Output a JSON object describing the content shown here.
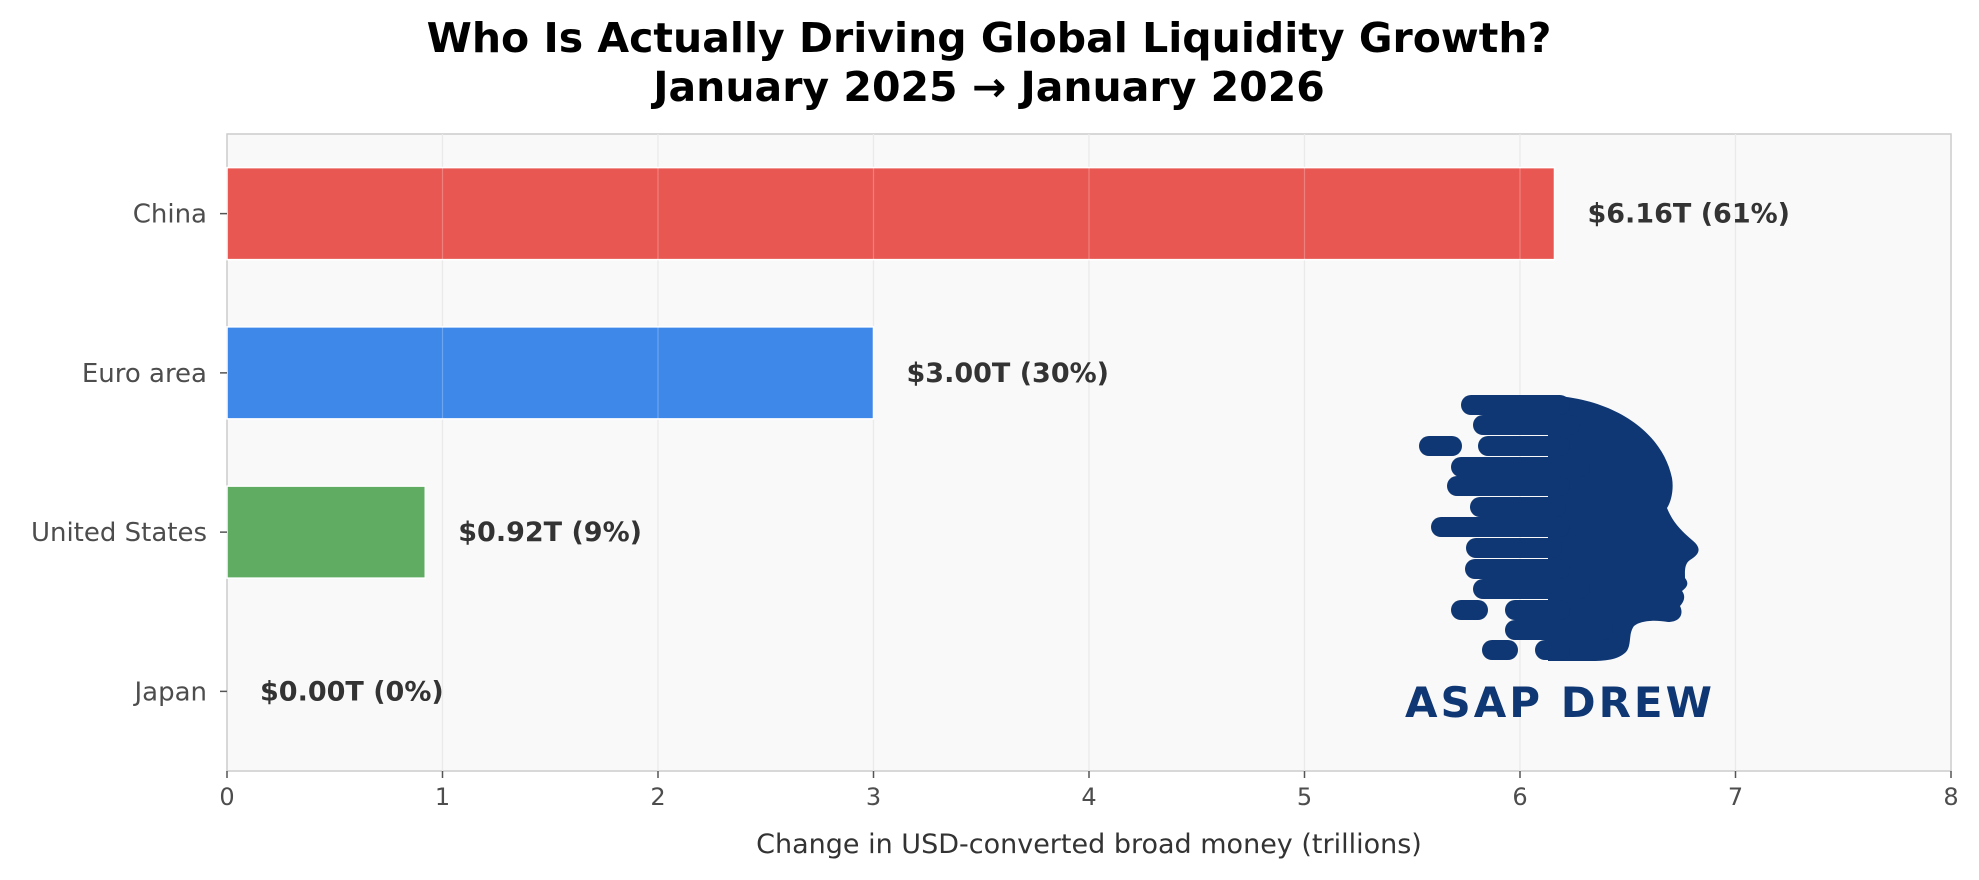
{
  "chart_data": {
    "type": "bar",
    "orientation": "horizontal",
    "title_line1": "Who Is Actually Driving Global Liquidity Growth?",
    "title_line2": "January 2025 → January 2026",
    "xlabel": "Change in USD-converted broad money (trillions)",
    "ylabel": "",
    "xlim": [
      0,
      8
    ],
    "xticks": [
      0,
      1,
      2,
      3,
      4,
      5,
      6,
      7,
      8
    ],
    "grid": true,
    "categories": [
      "China",
      "Euro area",
      "United States",
      "Japan"
    ],
    "values": [
      6.16,
      3.0,
      0.92,
      0.0
    ],
    "data_labels": [
      "$6.16T  (61%)",
      "$3.00T  (30%)",
      "$0.92T  (9%)",
      "$0.00T  (0%)"
    ],
    "colors": [
      "#e85752",
      "#3d88e8",
      "#5fac62",
      "#999999"
    ]
  },
  "logo": {
    "text": "ASAP DREW",
    "color": "#0f3773"
  }
}
